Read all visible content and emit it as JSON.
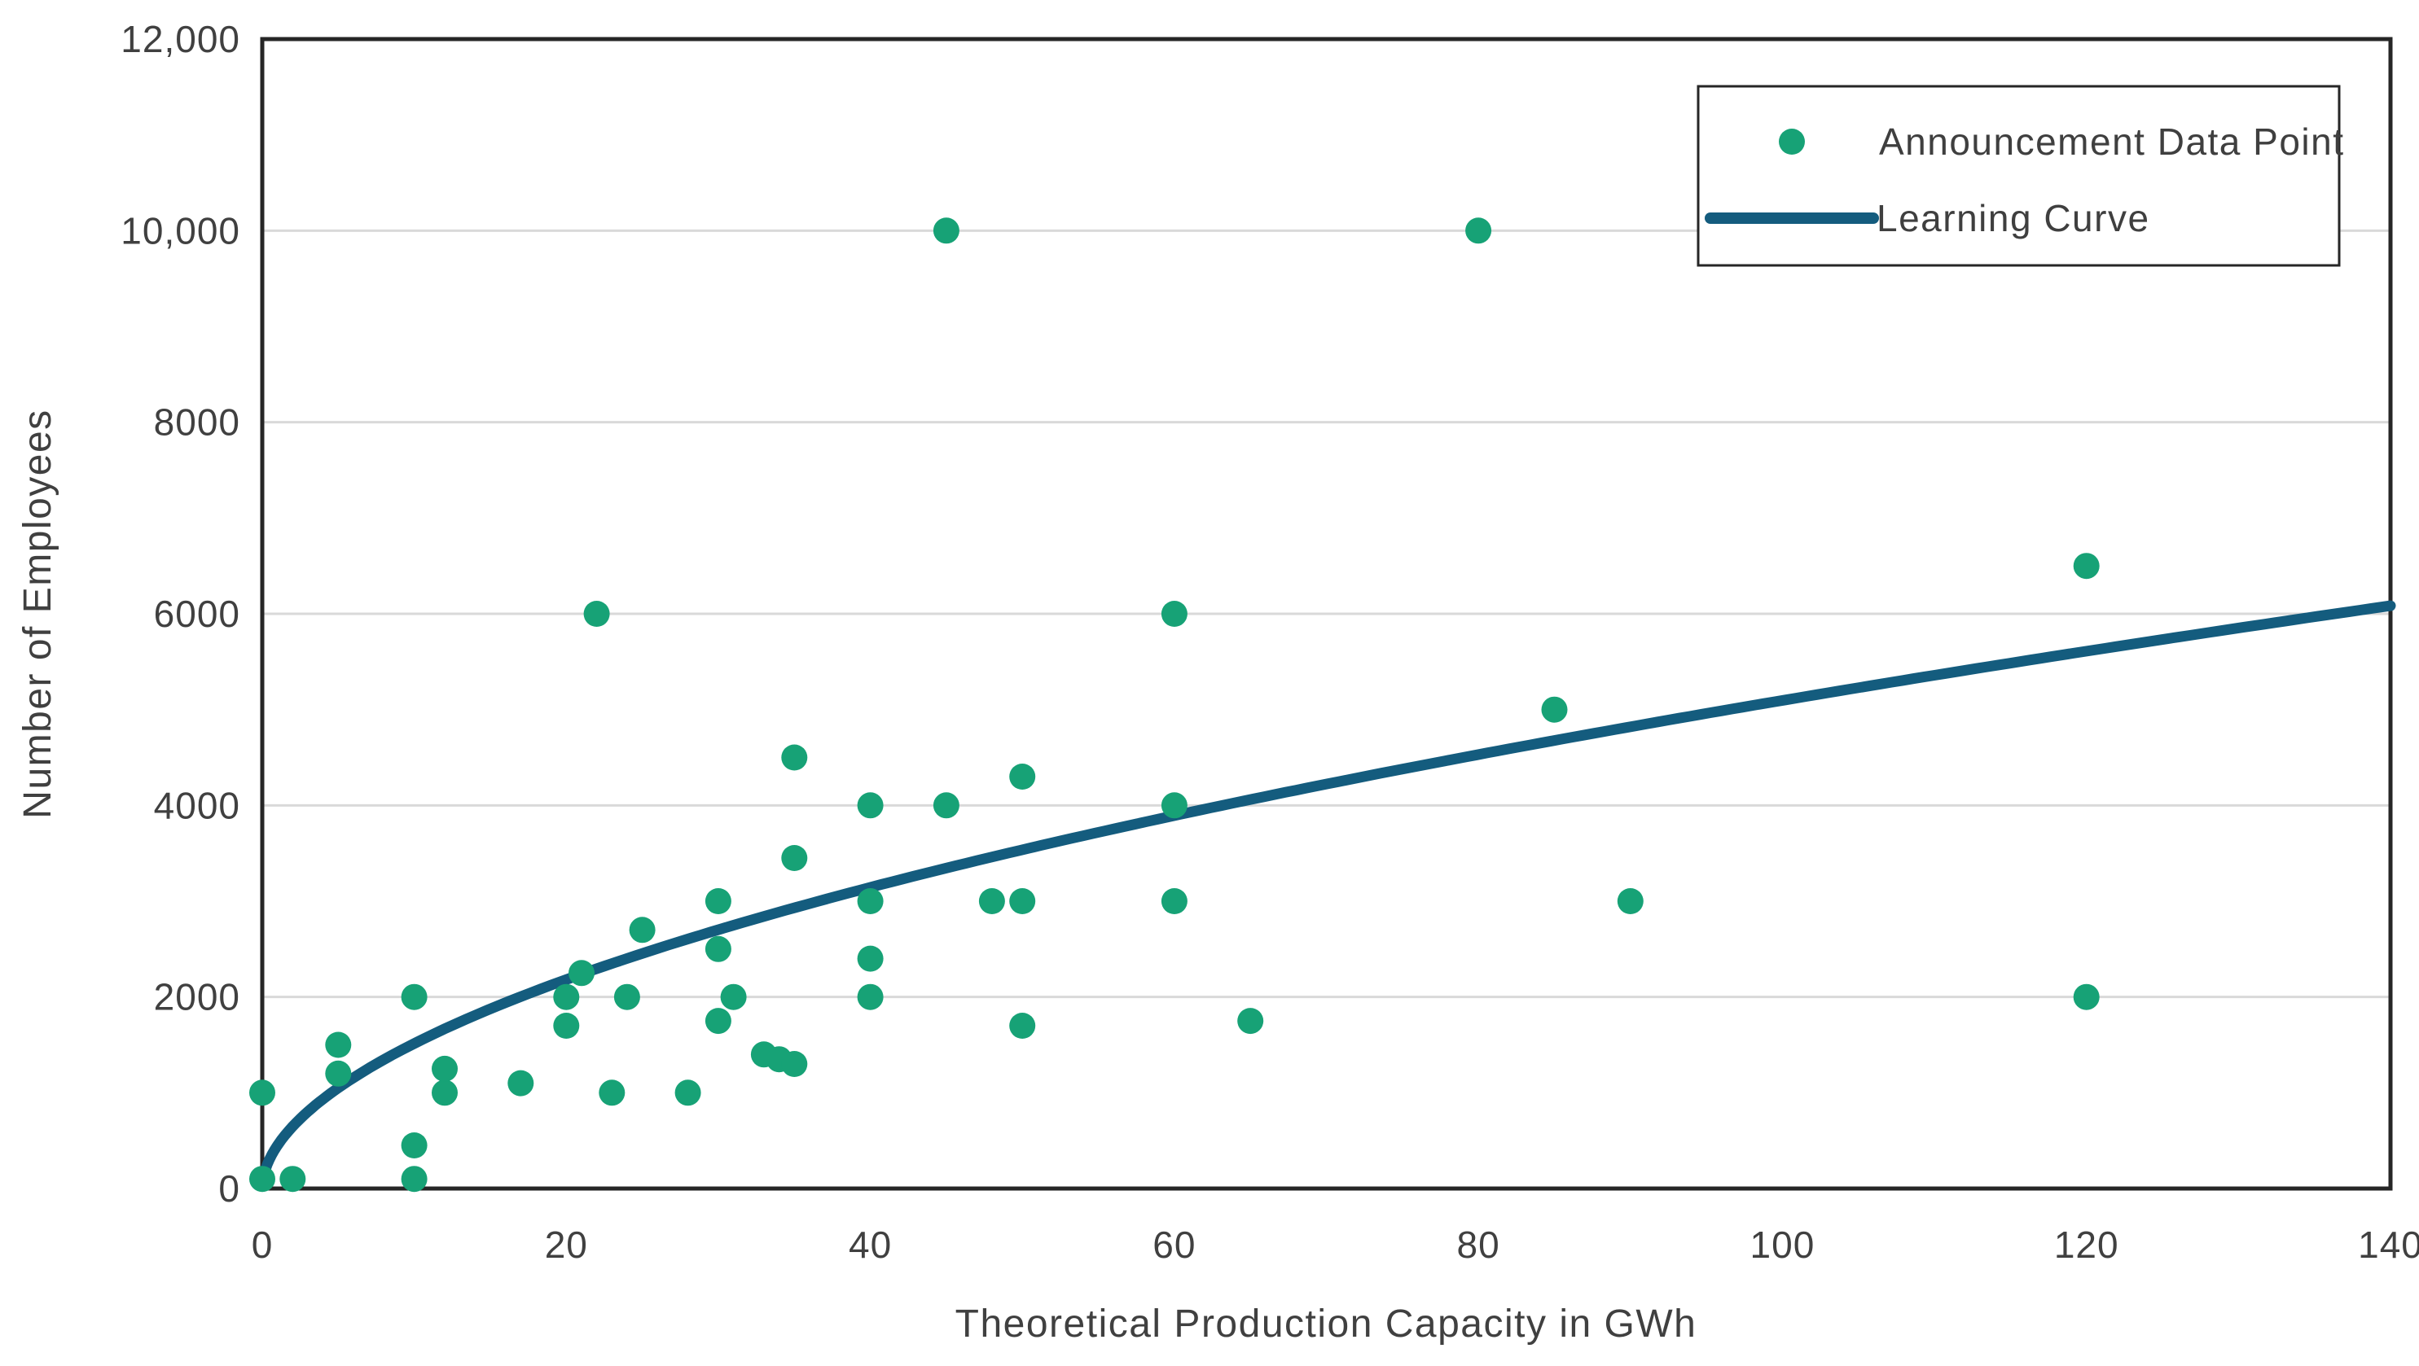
{
  "page": {
    "background": "#ffffff"
  },
  "chart_data": {
    "type": "scatter",
    "title": "",
    "xlabel": "Theoretical Production Capacity in GWh",
    "ylabel": "Number of Employees",
    "xlim": [
      0,
      140
    ],
    "ylim": [
      0,
      12000
    ],
    "x_ticks": [
      0,
      20,
      40,
      60,
      80,
      100,
      120,
      140
    ],
    "x_tick_labels": [
      "0",
      "20",
      "40",
      "60",
      "80",
      "100",
      "120",
      "140"
    ],
    "y_ticks": [
      0,
      2000,
      4000,
      6000,
      8000,
      10000,
      12000
    ],
    "y_tick_labels": [
      "0",
      "2000",
      "4000",
      "6000",
      "8000",
      "10,000",
      "12,000"
    ],
    "grid": {
      "horizontal": true,
      "vertical": false,
      "color": "#d9d9d9"
    },
    "axis_color": "#262626",
    "label_color": "#404040",
    "legend": {
      "position": "top-right",
      "border_color": "#262626",
      "background": "#ffffff"
    },
    "series": [
      {
        "name": "Announcement Data Point",
        "type": "scatter",
        "marker": "circle",
        "color": "#17a276",
        "points": [
          [
            0,
            100
          ],
          [
            0,
            1000
          ],
          [
            2,
            100
          ],
          [
            5,
            1200
          ],
          [
            5,
            1500
          ],
          [
            10,
            100
          ],
          [
            10,
            450
          ],
          [
            10,
            2000
          ],
          [
            12,
            1000
          ],
          [
            12,
            1250
          ],
          [
            17,
            1100
          ],
          [
            20,
            1700
          ],
          [
            20,
            2000
          ],
          [
            21,
            2250
          ],
          [
            22,
            6000
          ],
          [
            23,
            1000
          ],
          [
            24,
            2000
          ],
          [
            25,
            2700
          ],
          [
            28,
            1000
          ],
          [
            30,
            1750
          ],
          [
            30,
            2500
          ],
          [
            30,
            3000
          ],
          [
            31,
            2000
          ],
          [
            33,
            1400
          ],
          [
            34,
            1350
          ],
          [
            35,
            1300
          ],
          [
            35,
            3450
          ],
          [
            35,
            4500
          ],
          [
            40,
            2000
          ],
          [
            40,
            2400
          ],
          [
            40,
            3000
          ],
          [
            40,
            4000
          ],
          [
            45,
            4000
          ],
          [
            45,
            10000
          ],
          [
            48,
            3000
          ],
          [
            50,
            1700
          ],
          [
            50,
            3000
          ],
          [
            50,
            4300
          ],
          [
            60,
            3000
          ],
          [
            60,
            4000
          ],
          [
            60,
            6000
          ],
          [
            65,
            1750
          ],
          [
            80,
            10000
          ],
          [
            85,
            5000
          ],
          [
            90,
            3000
          ],
          [
            120,
            2000
          ],
          [
            120,
            6500
          ]
        ]
      },
      {
        "name": "Learning Curve",
        "type": "line",
        "fit": "power",
        "equation": "y = 450 * x^0.527",
        "coef_a": 450,
        "coef_b": 0.527,
        "x_range": [
          0.05,
          140
        ],
        "color": "#145c7e"
      }
    ]
  }
}
